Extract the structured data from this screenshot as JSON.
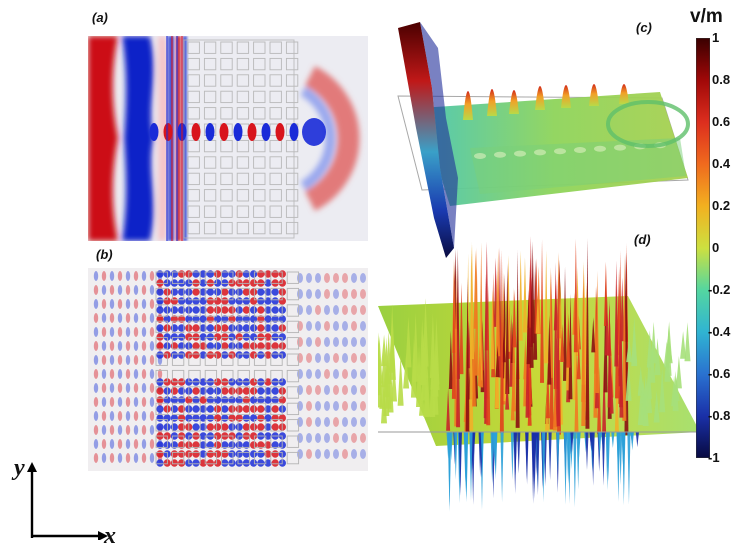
{
  "panels": {
    "a": {
      "label": "(a)"
    },
    "b": {
      "label": "(b)"
    },
    "c": {
      "label": "(c)"
    },
    "d": {
      "label": "(d)"
    }
  },
  "colorbar": {
    "unit": "v/m",
    "ticks": [
      "1",
      "0.8",
      "0.6",
      "0.4",
      "0.2",
      "0",
      "-0.2",
      "-0.4",
      "-0.6",
      "-0.8",
      "-1"
    ],
    "colormap": [
      "#7a0000",
      "#d21a1a",
      "#f07a20",
      "#f5d21f",
      "#b8e04a",
      "#3cd6b2",
      "#2aa0d8",
      "#2a4ec8",
      "#10166a"
    ]
  },
  "axes": {
    "x": "x",
    "y": "y"
  },
  "colors": {
    "red": "#d8141c",
    "blue": "#1a2bd8",
    "grid": "#b4b4b4"
  }
}
